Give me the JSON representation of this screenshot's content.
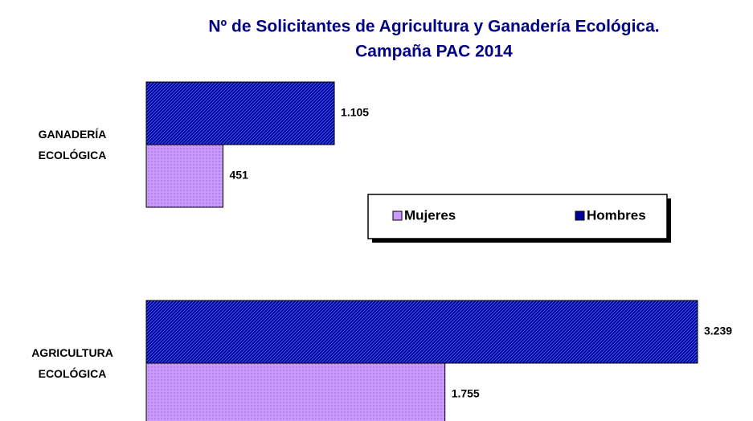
{
  "chart_data": {
    "type": "barh",
    "title": [
      "Nº de Solicitantes de Agricultura y Ganadería Ecológica.",
      "Campaña PAC 2014"
    ],
    "categories": [
      "GANADERÍA ECOLÓGICA",
      "AGRICULTURA ECOLÓGICA"
    ],
    "series": [
      {
        "name": "Mujeres",
        "color": "#cc99ff",
        "pattern": "dots",
        "values": [
          451,
          1755
        ],
        "value_labels": [
          "451",
          "1.755"
        ]
      },
      {
        "name": "Hombres",
        "color": "#000099",
        "pattern": "hatch",
        "values": [
          1105,
          3239
        ],
        "value_labels": [
          "1.105",
          "3.239"
        ]
      }
    ]
  }
}
